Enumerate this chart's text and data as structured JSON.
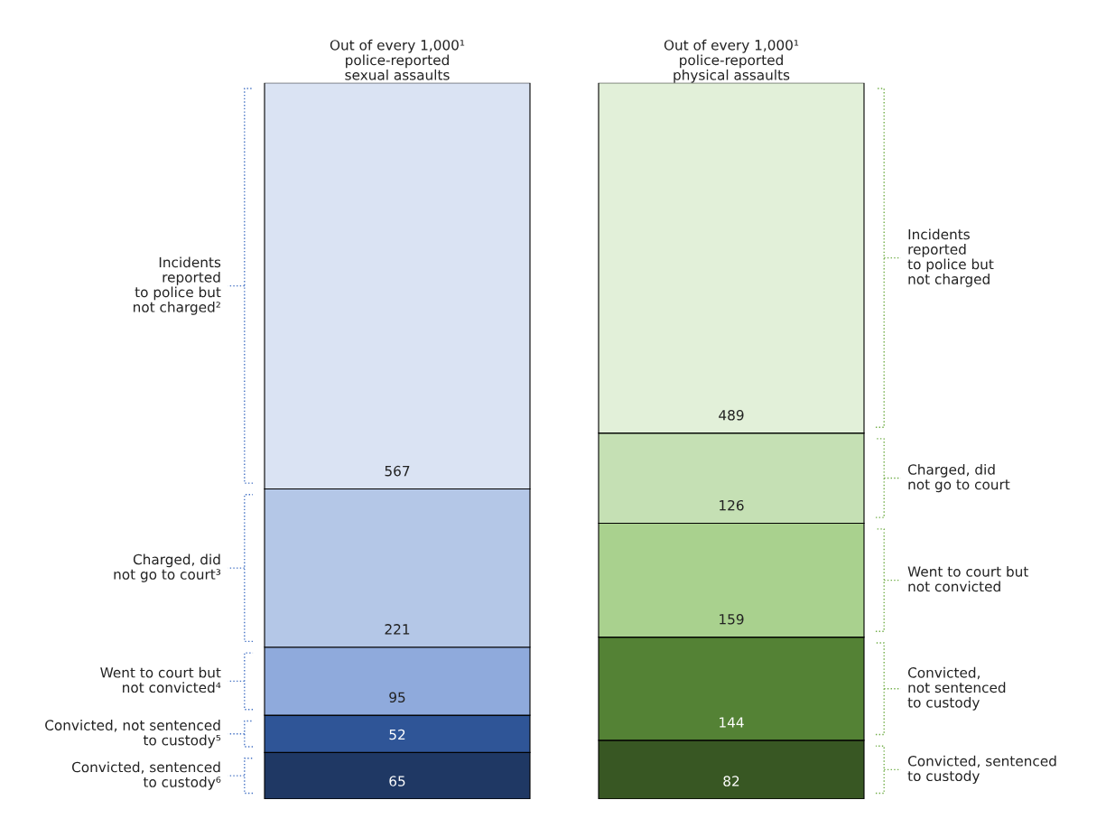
{
  "chart_data": {
    "type": "bar",
    "stacked": true,
    "data_labels": true,
    "categories": [
      "Out of every 1,000¹\npolice-reported\nsexual assaults",
      "Out of every 1,000¹\npolice-reported\nphysical assaults"
    ],
    "series": [
      {
        "colors": [
          "#1f3864",
          "#385723"
        ],
        "values": [
          65,
          82
        ]
      },
      {
        "colors": [
          "#2f5597",
          "#548235"
        ],
        "values": [
          52,
          144
        ]
      },
      {
        "colors": [
          "#8faadc",
          "#a9d18e"
        ],
        "values": [
          95,
          159
        ]
      },
      {
        "colors": [
          "#b4c7e7",
          "#c5e0b4"
        ],
        "values": [
          221,
          126
        ]
      },
      {
        "colors": [
          "#dae3f3",
          "#e2f0d9"
        ],
        "values": [
          567,
          489
        ]
      }
    ],
    "annotations": [
      "Incidents\nreported\nto police but\nnot charged²",
      "Charged, did\nnot go to court³",
      "Went to court but\nnot convicted⁴",
      "Convicted, not sentenced\nto custody⁵",
      "Convicted, sentenced\nto custody⁶",
      "Incidents\nreported\nto police but\nnot charged",
      "Charged, did\nnot go to court",
      "Went to court but\nnot convicted",
      "Convicted,\nnot sentenced\nto custody",
      "Convicted, sentenced\nto custody"
    ]
  }
}
